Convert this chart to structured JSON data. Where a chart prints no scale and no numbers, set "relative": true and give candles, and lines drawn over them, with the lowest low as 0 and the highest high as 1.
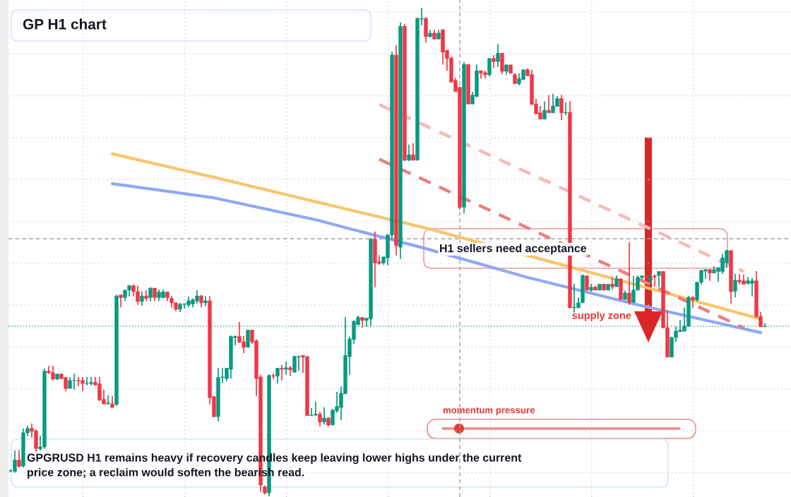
{
  "chart_data": {
    "type": "candlestick",
    "title": "GP H1 chart",
    "relative": true,
    "grid": true,
    "categories": [
      null,
      null,
      null,
      null,
      null,
      null,
      null,
      null,
      null,
      null,
      null,
      null,
      null,
      null,
      null,
      null,
      null,
      null,
      null,
      null,
      null,
      null,
      null,
      null,
      null,
      null,
      null,
      null,
      null,
      null,
      null,
      null,
      null,
      null,
      null,
      null,
      null,
      null,
      null,
      null,
      null,
      null,
      null,
      null,
      null,
      null,
      null,
      null,
      null,
      null,
      null,
      null,
      null,
      null,
      null,
      null,
      null,
      null,
      null,
      null,
      null,
      null,
      null,
      null,
      null,
      null,
      null,
      null,
      null,
      null,
      null,
      null,
      null,
      null,
      null,
      null,
      null,
      null,
      null,
      null,
      null,
      null,
      null,
      null,
      null,
      null,
      null,
      null,
      null,
      null,
      null,
      null,
      null,
      null,
      null,
      null,
      null,
      null,
      null,
      null,
      null,
      null,
      null,
      null,
      null,
      null,
      null,
      null,
      null,
      null,
      null,
      null,
      null,
      null,
      null,
      null,
      null,
      null,
      null,
      null,
      null,
      null,
      null,
      null,
      null,
      null,
      null,
      null,
      null,
      null,
      null,
      null,
      null,
      null,
      null,
      null,
      null,
      null,
      null,
      null,
      null,
      null,
      null,
      null,
      null,
      null,
      null,
      null,
      null,
      null,
      null,
      null,
      null,
      null,
      null,
      null,
      null,
      null,
      null,
      null,
      null,
      null,
      null,
      null,
      null,
      null,
      null,
      null,
      null,
      null,
      null,
      null,
      null,
      null,
      null,
      null,
      null,
      null,
      null
    ],
    "ohlc": [
      [
        0.052,
        0.055,
        0.049,
        0.052
      ],
      [
        0.051,
        0.094,
        0.048,
        0.074
      ],
      [
        0.074,
        0.095,
        0.059,
        0.061
      ],
      [
        0.062,
        0.139,
        0.059,
        0.13
      ],
      [
        0.13,
        0.145,
        0.123,
        0.139
      ],
      [
        0.139,
        0.149,
        0.12,
        0.133
      ],
      [
        0.134,
        0.137,
        0.091,
        0.098
      ],
      [
        0.097,
        0.124,
        0.094,
        0.101
      ],
      [
        0.101,
        0.262,
        0.097,
        0.256
      ],
      [
        0.256,
        0.267,
        0.25,
        0.253
      ],
      [
        0.253,
        0.267,
        0.237,
        0.24
      ],
      [
        0.24,
        0.251,
        0.238,
        0.25
      ],
      [
        0.25,
        0.251,
        0.24,
        0.241
      ],
      [
        0.243,
        0.244,
        0.215,
        0.221
      ],
      [
        0.221,
        0.244,
        0.22,
        0.237
      ],
      [
        0.237,
        0.251,
        0.218,
        0.237
      ],
      [
        0.237,
        0.244,
        0.225,
        0.236
      ],
      [
        0.237,
        0.244,
        0.215,
        0.231
      ],
      [
        0.231,
        0.244,
        0.227,
        0.231
      ],
      [
        0.231,
        0.244,
        0.227,
        0.233
      ],
      [
        0.233,
        0.244,
        0.227,
        0.228
      ],
      [
        0.23,
        0.244,
        0.195,
        0.197
      ],
      [
        0.198,
        0.218,
        0.189,
        0.189
      ],
      [
        0.189,
        0.207,
        0.189,
        0.191
      ],
      [
        0.189,
        0.205,
        0.182,
        0.182
      ],
      [
        0.188,
        0.412,
        0.185,
        0.41
      ],
      [
        0.412,
        0.412,
        0.387,
        0.407
      ],
      [
        0.407,
        0.422,
        0.4,
        0.422
      ],
      [
        0.422,
        0.432,
        0.409,
        0.431
      ],
      [
        0.431,
        0.434,
        0.409,
        0.419
      ],
      [
        0.419,
        0.431,
        0.392,
        0.399
      ],
      [
        0.399,
        0.419,
        0.39,
        0.41
      ],
      [
        0.41,
        0.422,
        0.399,
        0.405
      ],
      [
        0.407,
        0.428,
        0.399,
        0.426
      ],
      [
        0.426,
        0.426,
        0.4,
        0.407
      ],
      [
        0.407,
        0.423,
        0.4,
        0.418
      ],
      [
        0.407,
        0.423,
        0.405,
        0.418
      ],
      [
        0.418,
        0.418,
        0.4,
        0.407
      ],
      [
        0.405,
        0.41,
        0.386,
        0.396
      ],
      [
        0.396,
        0.396,
        0.379,
        0.383
      ],
      [
        0.383,
        0.396,
        0.377,
        0.393
      ],
      [
        0.393,
        0.394,
        0.384,
        0.394
      ],
      [
        0.392,
        0.409,
        0.387,
        0.4
      ],
      [
        0.394,
        0.405,
        0.387,
        0.402
      ],
      [
        0.4,
        0.422,
        0.394,
        0.41
      ],
      [
        0.41,
        0.412,
        0.387,
        0.396
      ],
      [
        0.396,
        0.41,
        0.389,
        0.4
      ],
      [
        0.4,
        0.41,
        0.188,
        0.202
      ],
      [
        0.204,
        0.205,
        0.162,
        0.163
      ],
      [
        0.163,
        0.263,
        0.153,
        0.243
      ],
      [
        0.243,
        0.263,
        0.231,
        0.244
      ],
      [
        0.241,
        0.263,
        0.236,
        0.262
      ],
      [
        0.26,
        0.329,
        0.241,
        0.327
      ],
      [
        0.325,
        0.329,
        0.309,
        0.327
      ],
      [
        0.327,
        0.357,
        0.315,
        0.315
      ],
      [
        0.316,
        0.328,
        0.293,
        0.305
      ],
      [
        0.305,
        0.34,
        0.305,
        0.34
      ],
      [
        0.34,
        0.34,
        0.312,
        0.316
      ],
      [
        0.318,
        0.321,
        0.205,
        0.241
      ],
      [
        0.244,
        0.249,
        0.009,
        0.023
      ],
      [
        0.019,
        0.022,
        0.004,
        0.007
      ],
      [
        0.007,
        0.25,
        0,
        0.247
      ],
      [
        0.247,
        0.251,
        0.24,
        0.246
      ],
      [
        0.246,
        0.263,
        0.231,
        0.262
      ],
      [
        0.262,
        0.269,
        0.237,
        0.26
      ],
      [
        0.26,
        0.276,
        0.249,
        0.263
      ],
      [
        0.263,
        0.267,
        0.246,
        0.259
      ],
      [
        0.254,
        0.288,
        0.254,
        0.286
      ],
      [
        0.285,
        0.288,
        0.257,
        0.286
      ],
      [
        0.288,
        0.288,
        0.253,
        0.285
      ],
      [
        0.286,
        0.286,
        0.165,
        0.165
      ],
      [
        0.165,
        0.181,
        0.165,
        0.166
      ],
      [
        0.166,
        0.194,
        0.165,
        0.168
      ],
      [
        0.168,
        0.173,
        0.143,
        0.152
      ],
      [
        0.152,
        0.182,
        0.147,
        0.16
      ],
      [
        0.16,
        0.162,
        0.143,
        0.146
      ],
      [
        0.146,
        0.179,
        0.146,
        0.176
      ],
      [
        0.175,
        0.214,
        0.171,
        0.184
      ],
      [
        0.182,
        0.225,
        0.156,
        0.211
      ],
      [
        0.21,
        0.367,
        0.21,
        0.288
      ],
      [
        0.286,
        0.327,
        0.249,
        0.322
      ],
      [
        0.321,
        0.361,
        0.312,
        0.358
      ],
      [
        0.351,
        0.37,
        0.351,
        0.366
      ],
      [
        0.366,
        0.366,
        0.345,
        0.36
      ],
      [
        0.36,
        0.366,
        0.347,
        0.364
      ],
      [
        0.363,
        0.529,
        0.348,
        0.526
      ],
      [
        0.526,
        0.542,
        0.428,
        0.478
      ],
      [
        0.48,
        0.494,
        0.474,
        0.477
      ],
      [
        0.478,
        0.49,
        0.474,
        0.49
      ],
      [
        0.488,
        0.535,
        0.473,
        0.535
      ],
      [
        0.535,
        0.91,
        0.525,
        0.903
      ],
      [
        0.903,
        0.923,
        0.493,
        0.513
      ],
      [
        0.51,
        0.97,
        0.486,
        0.962
      ],
      [
        0.962,
        0.967,
        0.686,
        0.688
      ],
      [
        0.688,
        0.72,
        0.686,
        0.699
      ],
      [
        0.699,
        0.723,
        0.688,
        0.688
      ],
      [
        0.688,
        0.98,
        0.688,
        0.978
      ],
      [
        0.977,
        1,
        0.964,
        0.978
      ],
      [
        0.978,
        0.981,
        0.929,
        0.941
      ],
      [
        0.941,
        0.955,
        0.939,
        0.948
      ],
      [
        0.948,
        0.955,
        0.936,
        0.936
      ],
      [
        0.936,
        0.955,
        0.936,
        0.948
      ],
      [
        0.955,
        0.955,
        0.884,
        0.909
      ],
      [
        0.913,
        0.913,
        0.871,
        0.896
      ],
      [
        0.897,
        0.9,
        0.848,
        0.848
      ],
      [
        0.851,
        0.857,
        0.828,
        0.829
      ],
      [
        0.837,
        0.838,
        0.587,
        0.591
      ],
      [
        0.592,
        0.889,
        0.579,
        0.884
      ],
      [
        0.884,
        0.884,
        0.803,
        0.803
      ],
      [
        0.803,
        0.828,
        0.803,
        0.821
      ],
      [
        0.819,
        0.884,
        0.816,
        0.871
      ],
      [
        0.871,
        0.871,
        0.855,
        0.866
      ],
      [
        0.867,
        0.871,
        0.855,
        0.863
      ],
      [
        0.863,
        0.897,
        0.86,
        0.896
      ],
      [
        0.896,
        0.903,
        0.877,
        0.89
      ],
      [
        0.89,
        0.926,
        0.879,
        0.907
      ],
      [
        0.907,
        0.907,
        0.864,
        0.87
      ],
      [
        0.87,
        0.884,
        0.863,
        0.883
      ],
      [
        0.883,
        0.883,
        0.866,
        0.866
      ],
      [
        0.863,
        0.866,
        0.845,
        0.845
      ],
      [
        0.845,
        0.866,
        0.841,
        0.855
      ],
      [
        0.853,
        0.873,
        0.853,
        0.873
      ],
      [
        0.873,
        0.876,
        0.861,
        0.861
      ],
      [
        0.863,
        0.873,
        0.802,
        0.802
      ],
      [
        0.803,
        0.814,
        0.783,
        0.783
      ],
      [
        0.785,
        0.799,
        0.772,
        0.772
      ],
      [
        0.772,
        0.808,
        0.772,
        0.79
      ],
      [
        0.79,
        0.821,
        0.785,
        0.785
      ],
      [
        0.785,
        0.824,
        0.785,
        0.799
      ],
      [
        0.798,
        0.819,
        0.798,
        0.814
      ],
      [
        0.814,
        0.822,
        0.77,
        0.785
      ],
      [
        0.785,
        0.806,
        0.78,
        0.786
      ],
      [
        0.786,
        0.809,
        0.384,
        0.386
      ],
      [
        0.386,
        0.435,
        0.376,
        0.387
      ],
      [
        0.386,
        0.407,
        0.386,
        0.396
      ],
      [
        0.396,
        0.454,
        0.396,
        0.452
      ],
      [
        0.451,
        0.452,
        0.422,
        0.422
      ],
      [
        0.422,
        0.435,
        0.419,
        0.428
      ],
      [
        0.428,
        0.431,
        0.422,
        0.422
      ],
      [
        0.422,
        0.434,
        0.422,
        0.434
      ],
      [
        0.434,
        0.434,
        0.422,
        0.422
      ],
      [
        0.422,
        0.434,
        0.422,
        0.434
      ],
      [
        0.434,
        0.448,
        0.423,
        0.429
      ],
      [
        0.429,
        0.452,
        0.429,
        0.445
      ],
      [
        0.445,
        0.445,
        0.403,
        0.403
      ],
      [
        0.403,
        0.421,
        0.403,
        0.416
      ],
      [
        0.416,
        0.52,
        0.392,
        0.397
      ],
      [
        0.397,
        0.451,
        0.397,
        0.422
      ],
      [
        0.422,
        0.452,
        0.422,
        0.448
      ],
      [
        0.448,
        0.452,
        0.444,
        0.451
      ],
      [
        0.451,
        0.454,
        0.444,
        0.448
      ],
      [
        0.442,
        0.455,
        0.438,
        0.449
      ],
      [
        0.451,
        0.454,
        0.429,
        0.449
      ],
      [
        0.452,
        0.46,
        0.429,
        0.46
      ],
      [
        0.46,
        0.46,
        0.345,
        0.345
      ],
      [
        0.345,
        0.38,
        0.285,
        0.285
      ],
      [
        0.285,
        0.327,
        0.285,
        0.325
      ],
      [
        0.325,
        0.347,
        0.316,
        0.338
      ],
      [
        0.337,
        0.361,
        0.337,
        0.34
      ],
      [
        0.338,
        0.386,
        0.338,
        0.348
      ],
      [
        0.348,
        0.41,
        0.348,
        0.407
      ],
      [
        0.407,
        0.41,
        0.386,
        0.402
      ],
      [
        0.402,
        0.438,
        0.399,
        0.438
      ],
      [
        0.438,
        0.464,
        0.434,
        0.462
      ],
      [
        0.461,
        0.464,
        0.445,
        0.464
      ],
      [
        0.464,
        0.464,
        0.441,
        0.457
      ],
      [
        0.457,
        0.471,
        0.457,
        0.464
      ],
      [
        0.46,
        0.468,
        0.439,
        0.468
      ],
      [
        0.46,
        0.496,
        0.455,
        0.488
      ],
      [
        0.478,
        0.504,
        0.467,
        0.503
      ],
      [
        0.503,
        0.503,
        0.394,
        0.419
      ],
      [
        0.42,
        0.455,
        0.407,
        0.442
      ],
      [
        0.442,
        0.455,
        0.434,
        0.439
      ],
      [
        0.441,
        0.454,
        0.434,
        0.434
      ],
      [
        0.436,
        0.449,
        0.434,
        0.441
      ],
      [
        0.436,
        0.447,
        0.409,
        0.441
      ],
      [
        0.441,
        0.461,
        0.366,
        0.368
      ],
      [
        0.368,
        0.377,
        0.347,
        0.347
      ],
      [
        0.347,
        0.354,
        0.347,
        0.348
      ]
    ],
    "series": [
      {
        "type": "line",
        "color": "#f9c46b",
        "line_style": "solid",
        "values": [
          null,
          null,
          null,
          null,
          null,
          null,
          null,
          null,
          null,
          null,
          null,
          null,
          null,
          null,
          null,
          null,
          null,
          null,
          null,
          null,
          null,
          null,
          null,
          null,
          0.701,
          null,
          null,
          null,
          null,
          null,
          null,
          null,
          null,
          null,
          null,
          null,
          null,
          null,
          null,
          null,
          null,
          null,
          null,
          null,
          null,
          null,
          null,
          null,
          0.653,
          null,
          null,
          null,
          null,
          null,
          null,
          null,
          null,
          null,
          null,
          null,
          null,
          null,
          null,
          null,
          null,
          null,
          null,
          null,
          null,
          null,
          null,
          null,
          0.603,
          null,
          null,
          null,
          null,
          null,
          null,
          null,
          null,
          null,
          null,
          null,
          null,
          null,
          null,
          null,
          null,
          null,
          null,
          null,
          null,
          null,
          null,
          null,
          null,
          null,
          0.549,
          null,
          null,
          null,
          null,
          null,
          null,
          null,
          null,
          null,
          null,
          null,
          null,
          null,
          null,
          null,
          null,
          null,
          null,
          null,
          null,
          null,
          null,
          null,
          null,
          null,
          null,
          null,
          null,
          null,
          null,
          null,
          null,
          null,
          null,
          null,
          null,
          null,
          null,
          null,
          null,
          null,
          null,
          null,
          null,
          null,
          null,
          null,
          null,
          null,
          0.432,
          null,
          null,
          null,
          null,
          null,
          null,
          null,
          null,
          null,
          null,
          null,
          null,
          null,
          null,
          null,
          null,
          null,
          null,
          null,
          null,
          null,
          null,
          null,
          null,
          null,
          null,
          null,
          null,
          0.363,
          null
        ]
      },
      {
        "type": "line",
        "color": "#8fa8f4",
        "line_style": "solid",
        "values": [
          null,
          null,
          null,
          null,
          null,
          null,
          null,
          null,
          null,
          null,
          null,
          null,
          null,
          null,
          null,
          null,
          null,
          null,
          null,
          null,
          null,
          null,
          null,
          null,
          0.64,
          null,
          null,
          null,
          null,
          null,
          null,
          null,
          null,
          null,
          null,
          null,
          null,
          null,
          null,
          null,
          null,
          null,
          null,
          null,
          null,
          null,
          null,
          null,
          0.611,
          null,
          null,
          null,
          null,
          null,
          null,
          null,
          null,
          null,
          null,
          null,
          null,
          null,
          null,
          null,
          null,
          null,
          null,
          null,
          null,
          null,
          null,
          null,
          0.566,
          null,
          null,
          null,
          null,
          null,
          null,
          null,
          null,
          null,
          null,
          null,
          null,
          null,
          null,
          null,
          null,
          null,
          null,
          null,
          null,
          null,
          null,
          null,
          null,
          null,
          0.507,
          null,
          null,
          null,
          null,
          null,
          null,
          null,
          null,
          null,
          null,
          null,
          null,
          null,
          null,
          null,
          null,
          null,
          null,
          null,
          null,
          null,
          null,
          null,
          0.448,
          null,
          null,
          null,
          null,
          null,
          null,
          null,
          null,
          null,
          null,
          null,
          null,
          null,
          null,
          null,
          null,
          null,
          null,
          null,
          null,
          null,
          null,
          null,
          null,
          null,
          0.392,
          null,
          null,
          null,
          null,
          null,
          null,
          null,
          null,
          null,
          null,
          null,
          null,
          null,
          null,
          null,
          null,
          null,
          null,
          null,
          null,
          null,
          null,
          null,
          null,
          null,
          null,
          null,
          null,
          0.335,
          null
        ]
      },
      {
        "type": "line",
        "color": "#eb7f7f",
        "line_style": "dashed",
        "values": [
          null,
          null,
          null,
          null,
          null,
          null,
          null,
          null,
          null,
          null,
          null,
          null,
          null,
          null,
          null,
          null,
          null,
          null,
          null,
          null,
          null,
          null,
          null,
          null,
          null,
          null,
          null,
          null,
          null,
          null,
          null,
          null,
          null,
          null,
          null,
          null,
          null,
          null,
          null,
          null,
          null,
          null,
          null,
          null,
          null,
          null,
          null,
          null,
          null,
          null,
          null,
          null,
          null,
          null,
          null,
          null,
          null,
          null,
          null,
          null,
          null,
          null,
          null,
          null,
          null,
          null,
          null,
          null,
          null,
          null,
          null,
          null,
          null,
          null,
          null,
          null,
          null,
          null,
          null,
          null,
          null,
          null,
          null,
          null,
          null,
          null,
          null,
          0.69,
          null,
          null,
          null,
          null,
          null,
          null,
          null,
          null,
          null,
          null,
          null,
          null,
          null,
          null,
          null,
          null,
          null,
          null,
          null,
          null,
          null,
          null,
          null,
          null,
          null,
          null,
          null,
          null,
          null,
          null,
          null,
          null,
          null,
          null,
          null,
          null,
          null,
          null,
          null,
          null,
          null,
          null,
          null,
          null,
          null,
          null,
          null,
          null,
          null,
          null,
          null,
          null,
          null,
          null,
          null,
          null,
          null,
          null,
          null,
          null,
          null,
          null,
          null,
          null,
          null,
          null,
          null,
          null,
          null,
          null,
          null,
          null,
          null,
          null,
          null,
          null,
          null,
          null,
          null,
          null,
          null,
          null,
          null,
          null,
          null,
          0.345,
          null,
          null,
          null,
          null,
          null
        ]
      },
      {
        "type": "line",
        "color": "#f6b9b9",
        "line_style": "dashed",
        "values": [
          null,
          null,
          null,
          null,
          null,
          null,
          null,
          null,
          null,
          null,
          null,
          null,
          null,
          null,
          null,
          null,
          null,
          null,
          null,
          null,
          null,
          null,
          null,
          null,
          null,
          null,
          null,
          null,
          null,
          null,
          null,
          null,
          null,
          null,
          null,
          null,
          null,
          null,
          null,
          null,
          null,
          null,
          null,
          null,
          null,
          null,
          null,
          null,
          null,
          null,
          null,
          null,
          null,
          null,
          null,
          null,
          null,
          null,
          null,
          null,
          null,
          null,
          null,
          null,
          null,
          null,
          null,
          null,
          null,
          null,
          null,
          null,
          null,
          null,
          null,
          null,
          null,
          null,
          null,
          null,
          null,
          null,
          null,
          null,
          null,
          null,
          null,
          0.802,
          null,
          null,
          null,
          null,
          null,
          null,
          null,
          null,
          null,
          null,
          null,
          null,
          null,
          null,
          null,
          null,
          null,
          null,
          null,
          null,
          null,
          null,
          null,
          null,
          null,
          null,
          null,
          null,
          null,
          null,
          null,
          null,
          null,
          null,
          null,
          null,
          null,
          null,
          null,
          null,
          null,
          null,
          null,
          null,
          null,
          null,
          null,
          null,
          null,
          null,
          null,
          null,
          null,
          null,
          null,
          null,
          null,
          null,
          null,
          null,
          null,
          null,
          null,
          null,
          null,
          null,
          null,
          null,
          null,
          null,
          null,
          null,
          null,
          null,
          null,
          null,
          null,
          null,
          null,
          null,
          null,
          null,
          null,
          null,
          null,
          0.46,
          null,
          null,
          null,
          null,
          null
        ]
      }
    ],
    "ref_lines": [
      {
        "axis": "y",
        "value": 0.527,
        "color": "#9e9e9e",
        "line_style": "dashed"
      },
      {
        "axis": "y",
        "value": 0.348,
        "color": "#089981",
        "line_style": "dotted"
      }
    ],
    "annotations": [
      "H1 sellers need acceptance",
      "supply zone",
      "momentum pressure",
      "GPGRUSD H1 remains heavy if recovery candles keep leaving lower highs under the current\nprice zone; a reclaim would soften the bearish read."
    ]
  }
}
